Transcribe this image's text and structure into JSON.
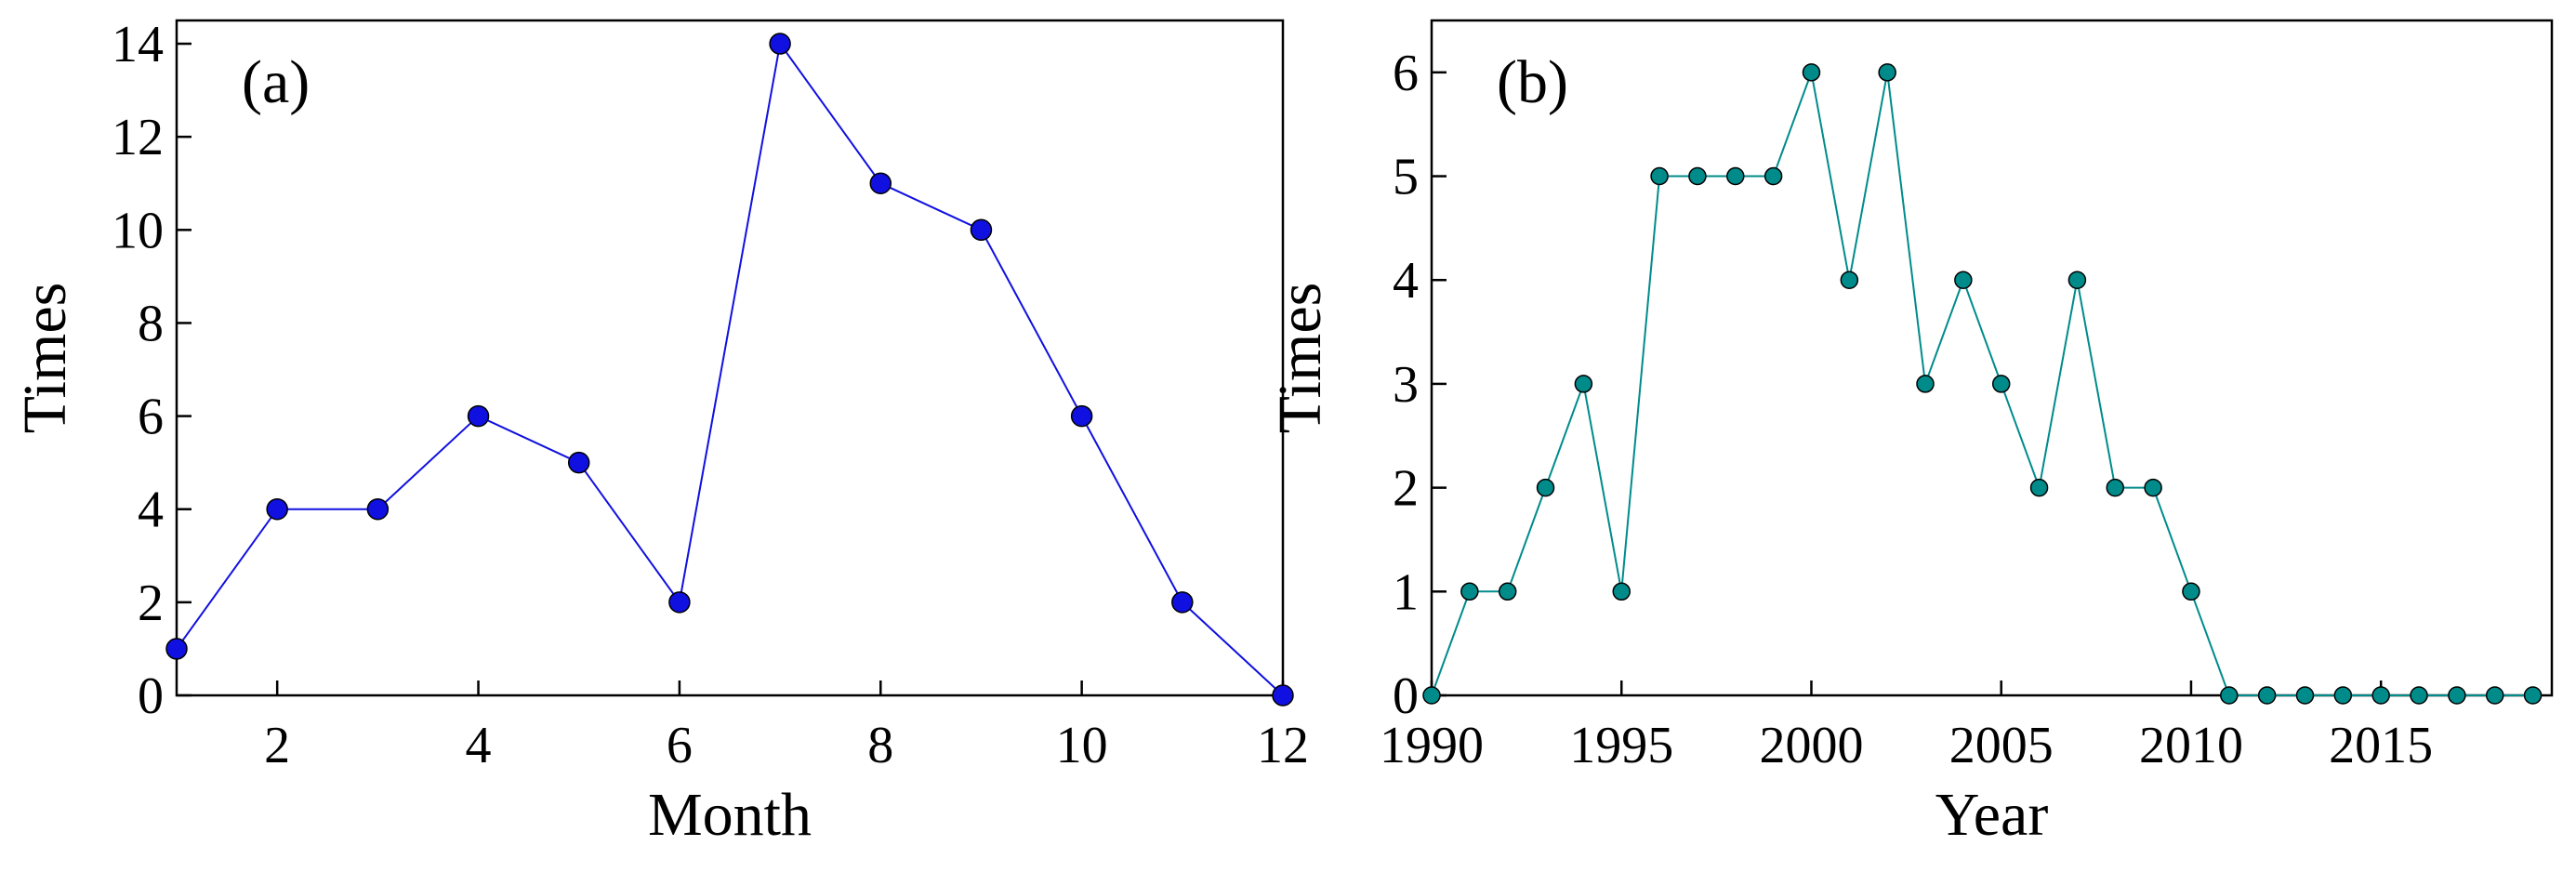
{
  "chart_data": [
    {
      "type": "line",
      "panel_label": "(a)",
      "xlabel": "Month",
      "ylabel": "Times",
      "xlim": [
        1,
        12
      ],
      "ylim": [
        0,
        14.5
      ],
      "x_ticks": [
        2,
        4,
        6,
        8,
        10,
        12
      ],
      "y_ticks": [
        0,
        2,
        4,
        6,
        8,
        10,
        12,
        14
      ],
      "grid": false,
      "color": "#1010e0",
      "series": [
        {
          "name": "Times",
          "x": [
            1,
            2,
            3,
            4,
            5,
            6,
            7,
            8,
            9,
            10,
            11,
            12
          ],
          "y": [
            1,
            4,
            4,
            6,
            5,
            2,
            14,
            11,
            10,
            6,
            2,
            0
          ]
        }
      ]
    },
    {
      "type": "line",
      "panel_label": "(b)",
      "xlabel": "Year",
      "ylabel": "Times",
      "xlim": [
        1990,
        2019.5
      ],
      "ylim": [
        0,
        6.5
      ],
      "x_ticks": [
        1990,
        1995,
        2000,
        2005,
        2010,
        2015
      ],
      "y_ticks": [
        0,
        1,
        2,
        3,
        4,
        5,
        6
      ],
      "grid": false,
      "color": "#008b8b",
      "series": [
        {
          "name": "Times",
          "x": [
            1990,
            1991,
            1992,
            1993,
            1994,
            1995,
            1996,
            1997,
            1998,
            1999,
            2000,
            2001,
            2002,
            2003,
            2004,
            2005,
            2006,
            2007,
            2008,
            2009,
            2010,
            2011,
            2012,
            2013,
            2014,
            2015,
            2016,
            2017,
            2018,
            2019
          ],
          "y": [
            0,
            1,
            1,
            2,
            3,
            1,
            5,
            5,
            5,
            5,
            6,
            4,
            6,
            3,
            4,
            3,
            2,
            4,
            2,
            2,
            1,
            0,
            0,
            0,
            0,
            0,
            0,
            0,
            0,
            0
          ]
        }
      ]
    }
  ]
}
